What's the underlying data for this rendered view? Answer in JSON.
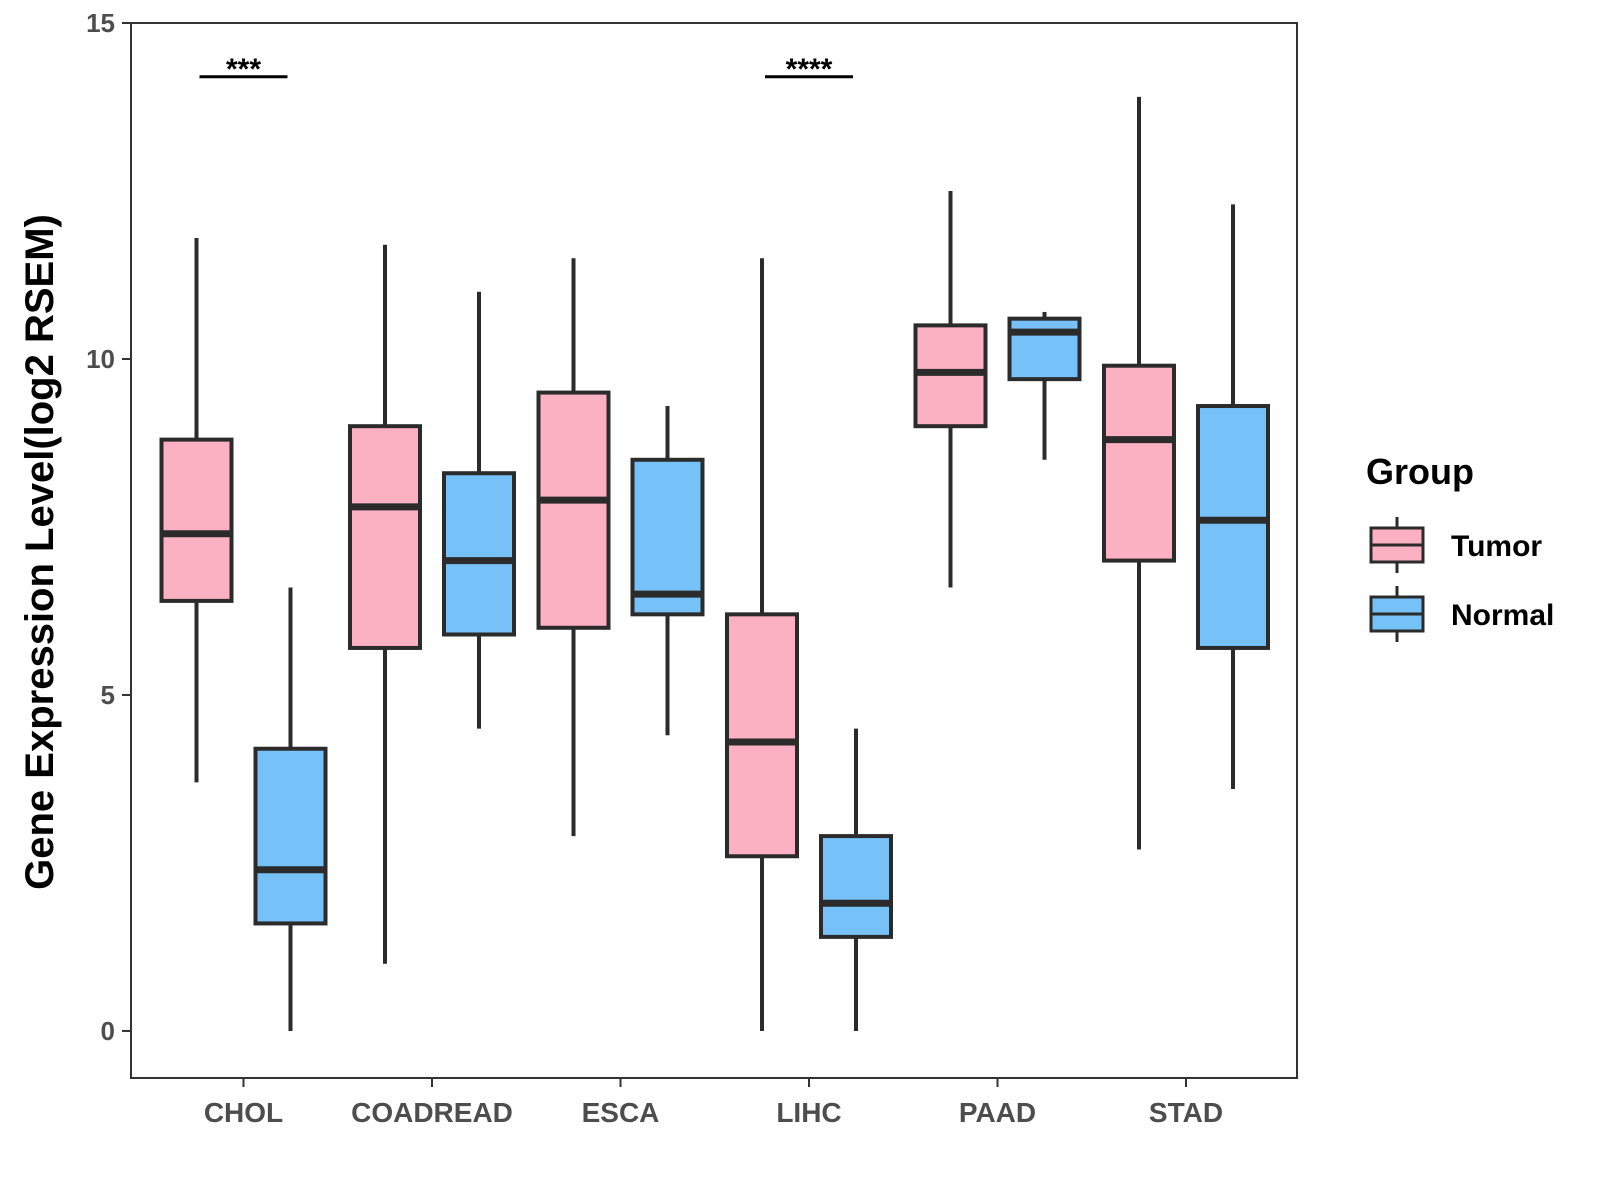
{
  "chart_data": {
    "type": "boxplot",
    "title": "",
    "xlabel": "",
    "ylabel": "Gene Expression Level(log2 RSEM)",
    "ylim": [
      -0.7,
      15
    ],
    "yticks": [
      0,
      5,
      10,
      15
    ],
    "categories": [
      "CHOL",
      "COADREAD",
      "ESCA",
      "LIHC",
      "PAAD",
      "STAD"
    ],
    "legend": {
      "title": "Group",
      "position": "right",
      "entries": [
        "Tumor",
        "Normal"
      ]
    },
    "colors": {
      "Tumor": "#FBB1C2",
      "Normal": "#76C1F8",
      "stroke": "#2b2b2b"
    },
    "series": [
      {
        "name": "Tumor",
        "boxes": [
          {
            "category": "CHOL",
            "min": 3.7,
            "q1": 6.4,
            "median": 7.4,
            "q3": 8.8,
            "max": 11.8
          },
          {
            "category": "COADREAD",
            "min": 1.0,
            "q1": 5.7,
            "median": 7.8,
            "q3": 9.0,
            "max": 11.7
          },
          {
            "category": "ESCA",
            "min": 2.9,
            "q1": 6.0,
            "median": 7.9,
            "q3": 9.5,
            "max": 11.5
          },
          {
            "category": "LIHC",
            "min": 0.0,
            "q1": 2.6,
            "median": 4.3,
            "q3": 6.2,
            "max": 11.5
          },
          {
            "category": "PAAD",
            "min": 6.6,
            "q1": 9.0,
            "median": 9.8,
            "q3": 10.5,
            "max": 12.5
          },
          {
            "category": "STAD",
            "min": 2.7,
            "q1": 7.0,
            "median": 8.8,
            "q3": 9.9,
            "max": 13.9
          }
        ]
      },
      {
        "name": "Normal",
        "boxes": [
          {
            "category": "CHOL",
            "min": 0.0,
            "q1": 1.6,
            "median": 2.4,
            "q3": 4.2,
            "max": 6.6
          },
          {
            "category": "COADREAD",
            "min": 4.5,
            "q1": 5.9,
            "median": 7.0,
            "q3": 8.3,
            "max": 11.0
          },
          {
            "category": "ESCA",
            "min": 4.4,
            "q1": 6.2,
            "median": 6.5,
            "q3": 8.5,
            "max": 9.3
          },
          {
            "category": "LIHC",
            "min": 0.0,
            "q1": 1.4,
            "median": 1.9,
            "q3": 2.9,
            "max": 4.5
          },
          {
            "category": "PAAD",
            "min": 8.5,
            "q1": 9.7,
            "median": 10.4,
            "q3": 10.6,
            "max": 10.7
          },
          {
            "category": "STAD",
            "min": 3.6,
            "q1": 5.7,
            "median": 7.6,
            "q3": 9.3,
            "max": 12.3
          }
        ]
      }
    ],
    "annotations": [
      {
        "category": "CHOL",
        "text": "***",
        "y": 14.2
      },
      {
        "category": "LIHC",
        "text": "****",
        "y": 14.2
      }
    ]
  }
}
